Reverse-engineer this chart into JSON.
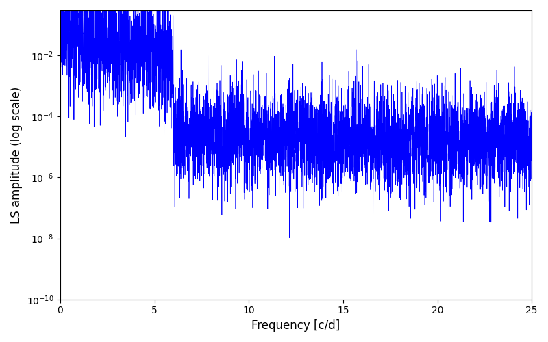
{
  "line_color": "#0000ff",
  "line_width": 0.5,
  "xlabel": "Frequency [c/d]",
  "ylabel": "LS amplitude (log scale)",
  "xlim": [
    0,
    25
  ],
  "ylim": [
    1e-10,
    0.3
  ],
  "xticks": [
    0,
    5,
    10,
    15,
    20,
    25
  ],
  "yscale": "log",
  "background_color": "#ffffff",
  "seed": 17,
  "N": 5000,
  "envelope_amp": 0.08,
  "envelope_decay": 0.35,
  "floor_amp": 3e-05,
  "floor_decay": 0.03,
  "noise_sigma": 2.5
}
